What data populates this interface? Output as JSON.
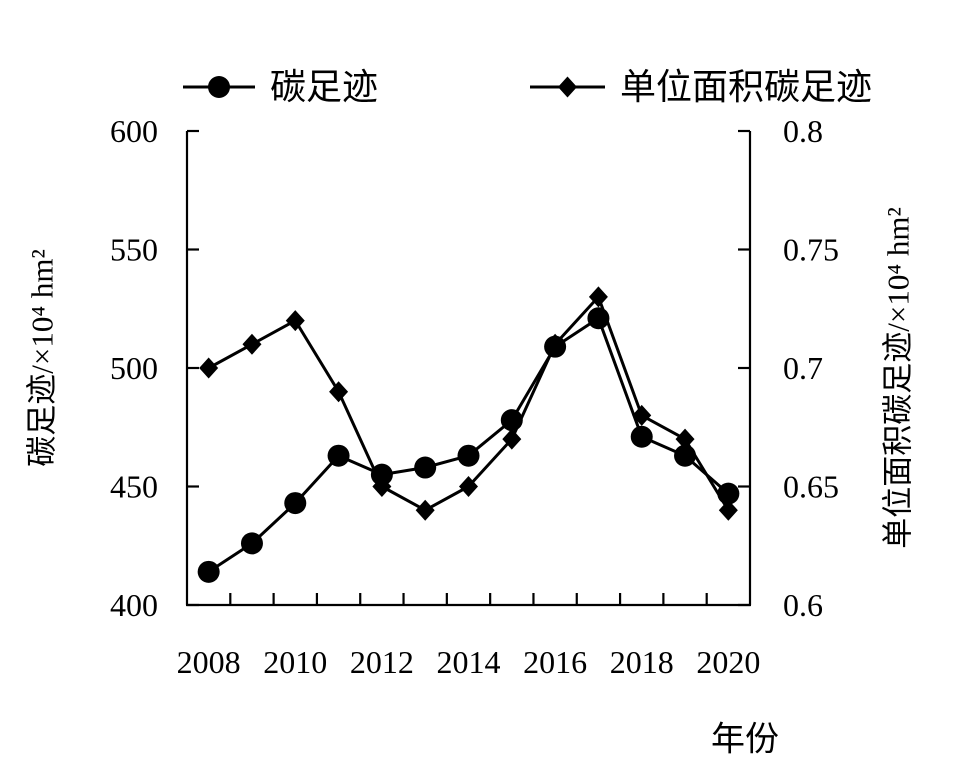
{
  "chart_data": {
    "type": "line",
    "x": [
      2008,
      2009,
      2010,
      2011,
      2012,
      2013,
      2014,
      2015,
      2016,
      2017,
      2018,
      2019,
      2020
    ],
    "x_ticks": [
      "2008",
      "2010",
      "2012",
      "2014",
      "2016",
      "2018",
      "2020"
    ],
    "xlabel": "年份",
    "y_left": {
      "label": "碳足迹/×10⁴ hm²",
      "range": [
        400,
        600
      ],
      "ticks": [
        "400",
        "450",
        "500",
        "550",
        "600"
      ]
    },
    "y_right": {
      "label": "单位面积碳足迹/×10⁴ hm²",
      "range": [
        0.6,
        0.8
      ],
      "ticks": [
        "0.6",
        "0.65",
        "0.7",
        "0.75",
        "0.8"
      ]
    },
    "series": [
      {
        "name": "碳足迹",
        "axis": "left",
        "marker": "circle",
        "color": "#000000",
        "values": [
          414,
          426,
          443,
          463,
          455,
          458,
          463,
          478,
          509,
          521,
          471,
          463,
          447
        ]
      },
      {
        "name": "单位面积碳足迹",
        "axis": "right",
        "marker": "diamond",
        "color": "#000000",
        "values": [
          0.7,
          0.71,
          0.72,
          0.69,
          0.65,
          0.64,
          0.65,
          0.67,
          0.71,
          0.73,
          0.68,
          0.67,
          0.64
        ]
      }
    ],
    "legend": {
      "placement": "top"
    },
    "grid": false
  }
}
